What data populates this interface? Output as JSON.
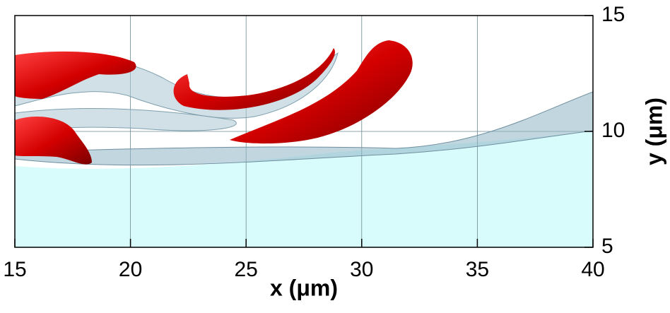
{
  "chart_data": {
    "type": "render",
    "xlabel": "x (μm)",
    "ylabel": "y (μm)",
    "xlim": [
      15,
      40
    ],
    "ylim": [
      5,
      15
    ],
    "xticks": [
      15,
      20,
      25,
      30,
      35,
      40
    ],
    "yticks": [
      5,
      10,
      15
    ],
    "grid": true
  }
}
